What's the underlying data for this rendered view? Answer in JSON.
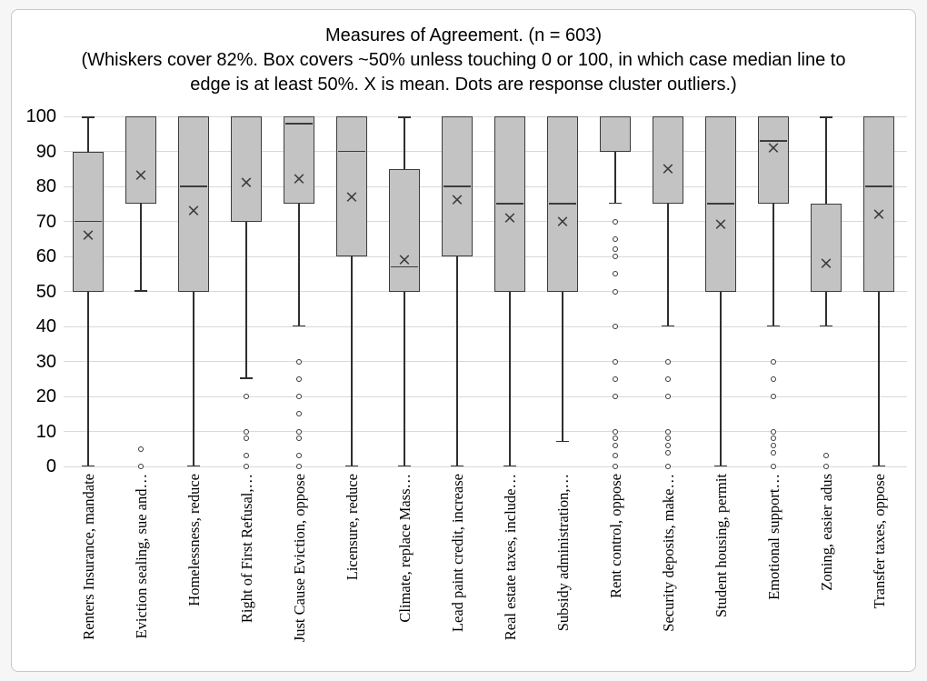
{
  "window": {
    "background": "#f6f6f6",
    "card_background": "#ffffff",
    "card_border": "#c9c9c9"
  },
  "header": {
    "title": "Measures of Agreement. (n = 603)",
    "subtitle_line1": "(Whiskers cover 82%. Box covers ~50% unless touching 0 or 100, in which case median line to",
    "subtitle_line2": "edge is at least 50%. X is mean. Dots are response cluster outliers.)"
  },
  "y_axis": {
    "ticks": [
      100,
      90,
      80,
      70,
      60,
      50,
      40,
      30,
      20,
      10,
      0
    ]
  },
  "style": {
    "box_fill": "#c3c3c3",
    "line_color": "#3c3c3c",
    "grid_color": "#d9d9d9"
  },
  "chart_data": {
    "type": "boxplot",
    "title": "Measures of Agreement. (n = 603)",
    "subtitle": "(Whiskers cover 82%. Box covers ~50% unless touching 0 or 100, in which case median line to edge is at least 50%. X is mean. Dots are response cluster outliers.)",
    "ylim": [
      0,
      100
    ],
    "ytick_step": 10,
    "grid": "horizontal",
    "mean_marker": "x",
    "outlier_marker": "open-circle",
    "series": [
      {
        "label": "Renters Insurance, mandate",
        "whisker_low": 0,
        "q1": 50,
        "median": 70,
        "q3": 90,
        "whisker_high": 100,
        "mean": 66,
        "outliers": []
      },
      {
        "label": "Eviction sealing, sue and…",
        "whisker_low": 50,
        "q1": 75,
        "median": 100,
        "q3": 100,
        "whisker_high": 100,
        "mean": 83,
        "outliers": [
          5,
          0
        ]
      },
      {
        "label": "Homelessness, reduce",
        "whisker_low": 0,
        "q1": 50,
        "median": 80,
        "q3": 100,
        "whisker_high": 100,
        "mean": 73,
        "outliers": []
      },
      {
        "label": "Right of First Refusal,…",
        "whisker_low": 25,
        "q1": 70,
        "median": 100,
        "q3": 100,
        "whisker_high": 100,
        "mean": 81,
        "outliers": [
          20,
          10,
          8,
          3,
          0
        ]
      },
      {
        "label": "Just Cause Eviction, oppose",
        "whisker_low": 40,
        "q1": 75,
        "median": 98,
        "q3": 100,
        "whisker_high": 100,
        "mean": 82,
        "outliers": [
          30,
          25,
          20,
          15,
          10,
          8,
          3,
          0
        ]
      },
      {
        "label": "Licensure, reduce",
        "whisker_low": 0,
        "q1": 60,
        "median": 90,
        "q3": 100,
        "whisker_high": 100,
        "mean": 77,
        "outliers": []
      },
      {
        "label": "Climate, replace Mass…",
        "whisker_low": 0,
        "q1": 50,
        "median": 57,
        "q3": 85,
        "whisker_high": 100,
        "mean": 59,
        "outliers": []
      },
      {
        "label": "Lead paint credit, increase",
        "whisker_low": 0,
        "q1": 60,
        "median": 80,
        "q3": 100,
        "whisker_high": 100,
        "mean": 76,
        "outliers": []
      },
      {
        "label": "Real estate taxes, include…",
        "whisker_low": 0,
        "q1": 50,
        "median": 75,
        "q3": 100,
        "whisker_high": 100,
        "mean": 71,
        "outliers": []
      },
      {
        "label": "Subsidy administration,…",
        "whisker_low": 7,
        "q1": 50,
        "median": 75,
        "q3": 100,
        "whisker_high": 100,
        "mean": 70,
        "outliers": []
      },
      {
        "label": "Rent control, oppose",
        "whisker_low": 75,
        "q1": 90,
        "median": 100,
        "q3": 100,
        "whisker_high": 100,
        "mean": null,
        "outliers": [
          70,
          65,
          62,
          60,
          55,
          50,
          40,
          30,
          25,
          20,
          10,
          8,
          6,
          3,
          0
        ]
      },
      {
        "label": "Security deposits, make…",
        "whisker_low": 40,
        "q1": 75,
        "median": 100,
        "q3": 100,
        "whisker_high": 100,
        "mean": 85,
        "outliers": [
          30,
          25,
          20,
          10,
          8,
          6,
          4,
          0
        ]
      },
      {
        "label": "Student housing, permit",
        "whisker_low": 0,
        "q1": 50,
        "median": 75,
        "q3": 100,
        "whisker_high": 100,
        "mean": 69,
        "outliers": []
      },
      {
        "label": "Emotional support…",
        "whisker_low": 40,
        "q1": 75,
        "median": 93,
        "q3": 100,
        "whisker_high": 100,
        "mean": 91,
        "outliers": [
          30,
          25,
          20,
          10,
          8,
          6,
          4,
          0
        ]
      },
      {
        "label": "Zoning, easier adus",
        "whisker_low": 40,
        "q1": 50,
        "median": null,
        "q3": 75,
        "whisker_high": 100,
        "mean": 58,
        "outliers": [
          3,
          0
        ]
      },
      {
        "label": "Transfer taxes, oppose",
        "whisker_low": 0,
        "q1": 50,
        "median": 80,
        "q3": 100,
        "whisker_high": 100,
        "mean": 72,
        "outliers": []
      }
    ]
  }
}
